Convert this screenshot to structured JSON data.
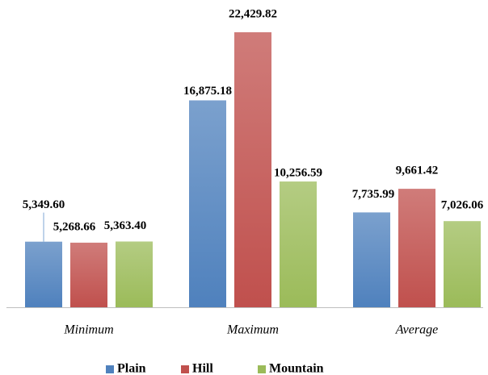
{
  "chart_data": {
    "type": "bar",
    "categories": [
      "Minimum",
      "Maximum",
      "Average"
    ],
    "series": [
      {
        "name": "Plain",
        "color": "#4f81bd",
        "values": [
          5349.6,
          16875.18,
          7735.99
        ],
        "value_labels": [
          "5,349.60",
          "16,875.18",
          "7,735.99"
        ]
      },
      {
        "name": "Hill",
        "color": "#c0504d",
        "values": [
          5268.66,
          22429.82,
          9661.42
        ],
        "value_labels": [
          "5,268.66",
          "22,429.82",
          "9,661.42"
        ]
      },
      {
        "name": "Mountain",
        "color": "#9bbb59",
        "values": [
          5363.4,
          10256.59,
          7026.06
        ],
        "value_labels": [
          "5,363.40",
          "10,256.59",
          "7,026.06"
        ]
      }
    ]
  }
}
